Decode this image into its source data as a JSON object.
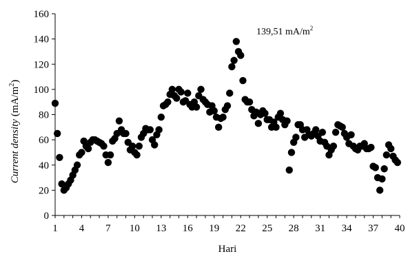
{
  "chart_data": {
    "type": "scatter",
    "title": "",
    "xlabel": "Hari",
    "ylabel_italic": "Current density",
    "ylabel_unit": "(mA/m",
    "ylabel_sup": "2",
    "ylabel_close": ")",
    "xlim": [
      1,
      40
    ],
    "ylim": [
      0,
      160
    ],
    "x_ticks": [
      1,
      4,
      7,
      10,
      13,
      16,
      19,
      22,
      25,
      28,
      31,
      34,
      37,
      40
    ],
    "y_ticks": [
      0,
      20,
      40,
      60,
      80,
      100,
      120,
      140,
      160
    ],
    "grid": false,
    "legend": "none",
    "marker_color": "#000000",
    "annotation": {
      "text": "139,51 mA/m",
      "sup": "2",
      "x": 21,
      "y": 139.51
    },
    "x": [
      1.0,
      1.25,
      1.5,
      1.75,
      2.0,
      2.25,
      2.5,
      2.75,
      3.0,
      3.25,
      3.5,
      3.75,
      4.0,
      4.25,
      4.5,
      4.75,
      5.0,
      5.25,
      5.5,
      5.75,
      6.0,
      6.25,
      6.5,
      6.75,
      7.0,
      7.25,
      7.5,
      7.75,
      8.0,
      8.25,
      8.5,
      8.75,
      9.0,
      9.25,
      9.5,
      9.75,
      10.0,
      10.25,
      10.5,
      10.75,
      11.0,
      11.25,
      11.5,
      11.75,
      12.0,
      12.25,
      12.5,
      12.75,
      13.0,
      13.25,
      13.5,
      13.75,
      14.0,
      14.25,
      14.5,
      14.75,
      15.0,
      15.25,
      15.5,
      15.75,
      16.0,
      16.25,
      16.5,
      16.75,
      17.0,
      17.25,
      17.5,
      17.75,
      18.0,
      18.25,
      18.5,
      18.75,
      19.0,
      19.25,
      19.5,
      19.75,
      20.0,
      20.25,
      20.5,
      20.75,
      21.0,
      21.25,
      21.5,
      21.75,
      22.0,
      22.25,
      22.5,
      22.75,
      23.0,
      23.25,
      23.5,
      23.75,
      24.0,
      24.25,
      24.5,
      24.75,
      25.0,
      25.25,
      25.5,
      25.75,
      26.0,
      26.25,
      26.5,
      26.75,
      27.0,
      27.25,
      27.5,
      27.75,
      28.0,
      28.25,
      28.5,
      28.75,
      29.0,
      29.25,
      29.5,
      29.75,
      30.0,
      30.25,
      30.5,
      30.75,
      31.0,
      31.25,
      31.5,
      31.75,
      32.0,
      32.25,
      32.5,
      32.75,
      33.0,
      33.25,
      33.5,
      33.75,
      34.0,
      34.25,
      34.5,
      34.75,
      35.0,
      35.25,
      35.5,
      35.75,
      36.0,
      36.25,
      36.5,
      36.75,
      37.0,
      37.25,
      37.5,
      37.75,
      38.0,
      38.25,
      38.5,
      38.75,
      39.0,
      39.25,
      39.5,
      39.75
    ],
    "y": [
      89,
      65,
      46,
      25,
      20,
      22,
      25,
      28,
      32,
      36,
      40,
      48,
      50,
      59,
      55,
      53,
      58,
      60,
      60,
      59,
      58,
      57,
      55,
      48,
      42,
      48,
      59,
      61,
      65,
      75,
      68,
      65,
      65,
      58,
      52,
      55,
      50,
      48,
      55,
      62,
      65,
      69,
      68,
      68,
      60,
      56,
      64,
      68,
      78,
      87,
      88,
      90,
      96,
      100,
      95,
      93,
      100,
      98,
      90,
      91,
      97,
      88,
      86,
      90,
      86,
      95,
      100,
      92,
      90,
      88,
      82,
      87,
      83,
      78,
      70,
      77,
      78,
      84,
      87,
      97,
      118,
      123,
      138,
      130,
      127,
      107,
      92,
      90,
      90,
      84,
      79,
      82,
      73,
      80,
      83,
      81,
      76,
      76,
      70,
      74,
      70,
      78,
      81,
      76,
      72,
      75,
      36,
      50,
      58,
      62,
      72,
      72,
      68,
      62,
      68,
      64,
      63,
      65,
      68,
      63,
      59,
      66,
      58,
      55,
      48,
      52,
      55,
      66,
      72,
      71,
      70,
      65,
      62,
      57,
      64,
      55,
      53,
      52,
      55,
      55,
      57,
      53,
      53,
      54,
      39,
      38,
      30,
      20,
      29,
      37,
      48,
      56,
      53,
      47,
      44,
      42
    ]
  }
}
